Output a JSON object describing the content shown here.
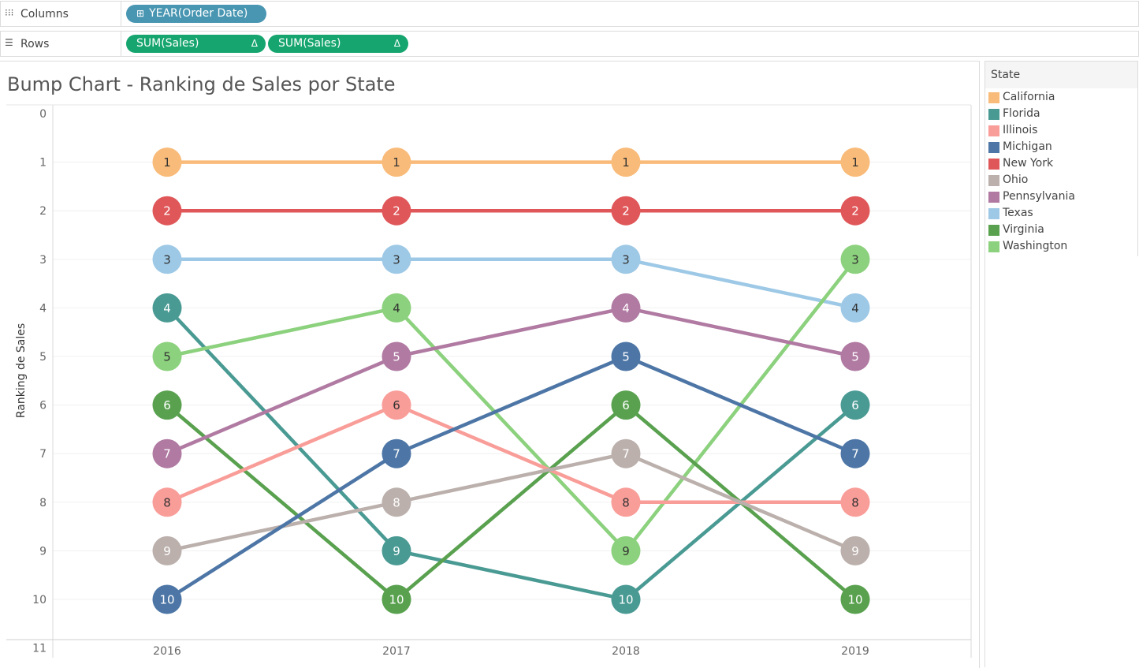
{
  "shelves": {
    "columns_label": "Columns",
    "columns_icon": "columns-icon",
    "columns_pill": "YEAR(Order Date)",
    "rows_label": "Rows",
    "rows_icon": "rows-icon",
    "rows_pill_1": "SUM(Sales)",
    "rows_pill_2": "SUM(Sales)",
    "delta_symbol": "Δ",
    "plus_symbol": "⊞"
  },
  "legend": {
    "title": "State",
    "items": [
      {
        "label": "California",
        "color": "#f9bb79"
      },
      {
        "label": "Florida",
        "color": "#4a9a94"
      },
      {
        "label": "Illinois",
        "color": "#f99d99"
      },
      {
        "label": "Michigan",
        "color": "#4d76a6"
      },
      {
        "label": "New York",
        "color": "#e05759"
      },
      {
        "label": "Ohio",
        "color": "#bbb0ac"
      },
      {
        "label": "Pennsylvania",
        "color": "#b07aa2"
      },
      {
        "label": "Texas",
        "color": "#9ec9e6"
      },
      {
        "label": "Virginia",
        "color": "#59a14f"
      },
      {
        "label": "Washington",
        "color": "#8cd17d"
      }
    ]
  },
  "chart_data": {
    "type": "line",
    "title": "Bump Chart - Ranking de Sales por State",
    "ylabel": "Ranking de Sales",
    "xlabel": "",
    "x": [
      "2016",
      "2017",
      "2018",
      "2019"
    ],
    "ylim": [
      0,
      11
    ],
    "y_reversed": true,
    "y_ticks": [
      "0",
      "1",
      "2",
      "3",
      "4",
      "5",
      "6",
      "7",
      "8",
      "9",
      "10",
      "11"
    ],
    "series": [
      {
        "name": "California",
        "values": [
          1,
          1,
          1,
          1
        ]
      },
      {
        "name": "New York",
        "values": [
          2,
          2,
          2,
          2
        ]
      },
      {
        "name": "Texas",
        "values": [
          3,
          3,
          3,
          4
        ]
      },
      {
        "name": "Florida",
        "values": [
          4,
          9,
          10,
          6
        ]
      },
      {
        "name": "Washington",
        "values": [
          5,
          4,
          9,
          3
        ]
      },
      {
        "name": "Virginia",
        "values": [
          6,
          10,
          6,
          10
        ]
      },
      {
        "name": "Pennsylvania",
        "values": [
          7,
          5,
          4,
          5
        ]
      },
      {
        "name": "Illinois",
        "values": [
          8,
          6,
          8,
          8
        ]
      },
      {
        "name": "Ohio",
        "values": [
          9,
          8,
          7,
          9
        ]
      },
      {
        "name": "Michigan",
        "values": [
          10,
          7,
          5,
          7
        ]
      }
    ],
    "grid": true,
    "legend_position": "right"
  }
}
